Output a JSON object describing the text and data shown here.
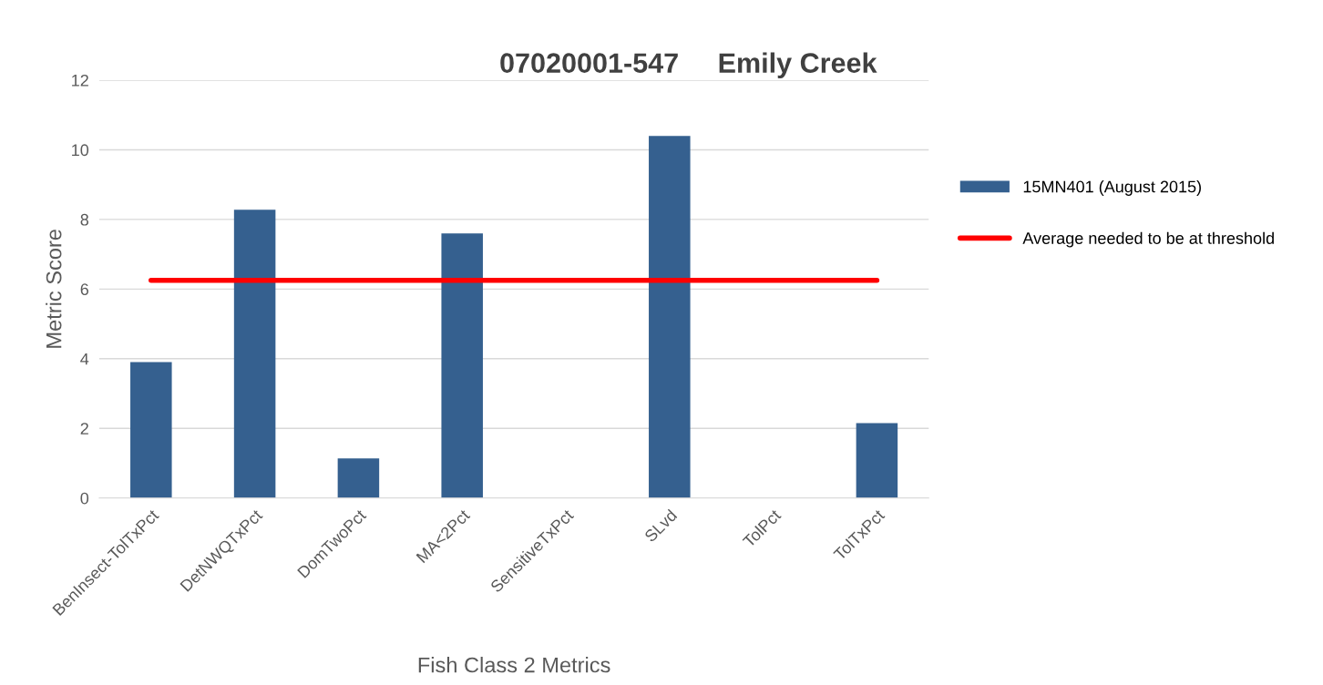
{
  "chart_data": {
    "type": "bar",
    "title": "07020001-547     Emily Creek",
    "xlabel": "Fish Class 2 Metrics",
    "ylabel": "Metric Score",
    "categories": [
      "BenInsect-TolTxPct",
      "DetNWQTxPct",
      "DomTwoPct",
      "MA<2Pct",
      "SensitiveTxPct",
      "SLvd",
      "TolPct",
      "TolTxPct"
    ],
    "series": [
      {
        "name": "15MN401 (August 2015)",
        "color": "#35608f",
        "values": [
          3.9,
          8.28,
          1.14,
          7.6,
          0,
          10.4,
          0,
          2.15
        ]
      },
      {
        "name": "Average needed to be at threshold",
        "type": "line",
        "color": "#ff0000",
        "values": [
          6.25,
          6.25,
          6.25,
          6.25,
          6.25,
          6.25,
          6.25,
          6.25
        ]
      }
    ],
    "ylim": [
      0,
      12
    ],
    "yticks": [
      0,
      2,
      4,
      6,
      8,
      10,
      12
    ],
    "grid": "y",
    "legend": "right"
  }
}
